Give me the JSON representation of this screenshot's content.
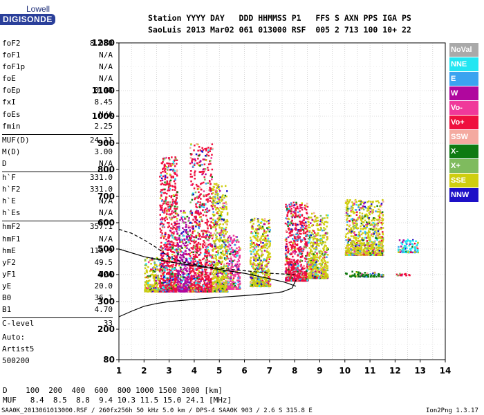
{
  "logo": {
    "top": "Lowell",
    "bottom": "DIGISONDE"
  },
  "header": {
    "line1": "Station YYYY DAY   DDD HHMMSS P1   FFS S AXN PPS IGA PS",
    "line2": "SaoLuis 2013 Mar02 061 013000 RSF  005 2 713 100 10+ 22"
  },
  "params": [
    {
      "name": "foF2",
      "value": "8.050"
    },
    {
      "name": "foF1",
      "value": "N/A"
    },
    {
      "name": "foF1p",
      "value": "N/A"
    },
    {
      "name": "foE",
      "value": "N/A"
    },
    {
      "name": "foEp",
      "value": "0.48"
    },
    {
      "name": "fxI",
      "value": "8.45"
    },
    {
      "name": "foEs",
      "value": "N/A"
    },
    {
      "name": "fmin",
      "value": "2.25"
    },
    {
      "name": "MUF(D)",
      "value": "24.11"
    },
    {
      "name": "M(D)",
      "value": "3.00"
    },
    {
      "name": "D",
      "value": "N/A"
    },
    {
      "name": "h`F",
      "value": "331.0"
    },
    {
      "name": "h`F2",
      "value": "331.0"
    },
    {
      "name": "h`E",
      "value": "N/A"
    },
    {
      "name": "h`Es",
      "value": "N/A"
    },
    {
      "name": "hmF2",
      "value": "357.1"
    },
    {
      "name": "hmF1",
      "value": "N/A"
    },
    {
      "name": "hmE",
      "value": "110.0"
    },
    {
      "name": "yF2",
      "value": "49.5"
    },
    {
      "name": "yF1",
      "value": "N/A"
    },
    {
      "name": "yE",
      "value": "20.0"
    },
    {
      "name": "B0",
      "value": "36.1"
    },
    {
      "name": "B1",
      "value": "4.70"
    },
    {
      "name": "C-level",
      "value": "33"
    }
  ],
  "auto": {
    "label": "Auto:",
    "artist": "Artist5",
    "version": "500200"
  },
  "legend": [
    {
      "name": "NoVal",
      "color": "#a9a9a9"
    },
    {
      "name": "NNE",
      "color": "#22e6f2"
    },
    {
      "name": "E",
      "color": "#3ba3f0"
    },
    {
      "name": "W",
      "color": "#b0079e"
    },
    {
      "name": "Vo-",
      "color": "#f0399a"
    },
    {
      "name": "Vo+",
      "color": "#ef0f3e"
    },
    {
      "name": "SSW",
      "color": "#f4aaa0"
    },
    {
      "name": "X-",
      "color": "#0e7a12"
    },
    {
      "name": "X+",
      "color": "#7fbb5e"
    },
    {
      "name": "SSE",
      "color": "#cfce0e"
    },
    {
      "name": "NNW",
      "color": "#1d10c7"
    }
  ],
  "bottom": {
    "d_row": "D    100  200  400  600  800 1000 1500 3000 [km]",
    "muf_row": "MUF   8.4  8.5  8.8  9.4 10.3 11.5 15.0 24.1 [MHz]",
    "footer_left": "SAA0K_2013061013000.RSF / 260fx256h 50 kHz 5.0 km / DPS-4 SAA0K 903 / 2.6 S 315.8 E",
    "footer_right": "Ion2Png 1.3.17"
  },
  "chart_data": {
    "type": "scatter",
    "x_ticks": [
      "1",
      "2",
      "3",
      "4",
      "5",
      "6",
      "7",
      "8",
      "9",
      "10",
      "11",
      "12",
      "13",
      "14"
    ],
    "y_ticks": [
      "80",
      "200",
      "300",
      "400",
      "500",
      "600",
      "700",
      "800",
      "900",
      "1000",
      "1100",
      "1280"
    ],
    "xlim": [
      1,
      14
    ],
    "y_scale": "reciprocal",
    "grid": true,
    "legend_placement": "right",
    "clusters": [
      {
        "x": [
          2.0,
          2.6
        ],
        "y": [
          340,
          470
        ],
        "color": "#cfce0e"
      },
      {
        "x": [
          2.6,
          3.3
        ],
        "y": [
          340,
          850
        ],
        "color": "#ef0f3e"
      },
      {
        "x": [
          3.3,
          3.8
        ],
        "y": [
          340,
          650
        ],
        "color": "#b0079e"
      },
      {
        "x": [
          3.8,
          4.7
        ],
        "y": [
          340,
          900
        ],
        "color": "#ef0f3e"
      },
      {
        "x": [
          4.7,
          5.3
        ],
        "y": [
          340,
          750
        ],
        "color": "#cfce0e"
      },
      {
        "x": [
          5.3,
          5.8
        ],
        "y": [
          350,
          560
        ],
        "color": "#f0399a"
      },
      {
        "x": [
          6.2,
          7.0
        ],
        "y": [
          360,
          620
        ],
        "color": "#cfce0e"
      },
      {
        "x": [
          7.6,
          8.5
        ],
        "y": [
          380,
          680
        ],
        "color": "#ef0f3e"
      },
      {
        "x": [
          8.5,
          9.3
        ],
        "y": [
          390,
          640
        ],
        "color": "#cfce0e"
      },
      {
        "x": [
          10.0,
          11.5
        ],
        "y": [
          480,
          690
        ],
        "color": "#cfce0e"
      },
      {
        "x": [
          10.0,
          11.5
        ],
        "y": [
          395,
          415
        ],
        "color": "#0e7a12"
      },
      {
        "x": [
          12.0,
          12.6
        ],
        "y": [
          400,
          410
        ],
        "color": "#ef0f3e"
      },
      {
        "x": [
          12.1,
          12.9
        ],
        "y": [
          490,
          540
        ],
        "color": "#22e6f2"
      }
    ],
    "trace_virtual_height": {
      "x": [
        1.0,
        1.5,
        2.0,
        2.5,
        3.0,
        3.5,
        4.0,
        5.0,
        6.0,
        7.0,
        7.5,
        7.9,
        8.05
      ],
      "y": [
        245,
        265,
        283,
        293,
        300,
        304,
        308,
        316,
        322,
        330,
        336,
        350,
        380
      ]
    },
    "trace_dashed": {
      "x": [
        1.0,
        1.5,
        2.0,
        2.5,
        3.0,
        3.5,
        4.0,
        4.5,
        5.0,
        6.0,
        7.0,
        8.0
      ],
      "y": [
        575,
        560,
        535,
        505,
        470,
        450,
        440,
        430,
        425,
        415,
        405,
        400
      ]
    },
    "trace_profile": {
      "x": [
        1.0,
        2.0,
        3.0,
        4.0,
        5.0,
        6.0,
        7.0,
        7.6,
        8.05
      ],
      "y": [
        500,
        470,
        450,
        435,
        420,
        405,
        385,
        372,
        357
      ]
    }
  }
}
